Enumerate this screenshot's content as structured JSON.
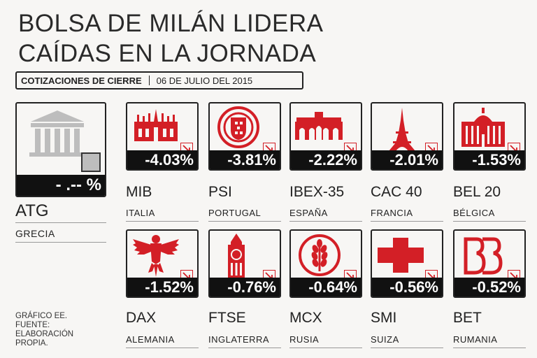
{
  "title": {
    "line1": "BOLSA DE MILÁN LIDERA",
    "line2": "CAÍDAS EN LA JORNADA"
  },
  "subheader": {
    "label": "COTIZACIONES DE CIERRE",
    "date": "06 DE JULIO DEL 2015"
  },
  "atg": {
    "index": "ATG",
    "country": "GRECIA",
    "change": "- .-- %"
  },
  "markets": [
    {
      "index": "MIB",
      "country": "ITALIA",
      "change": "-4.03%",
      "icon": "milan-cathedral-icon"
    },
    {
      "index": "PSI",
      "country": "PORTUGAL",
      "change": "-3.81%",
      "icon": "portugal-shield-icon"
    },
    {
      "index": "IBEX-35",
      "country": "ESPAÑA",
      "change": "-2.22%",
      "icon": "puerta-alcala-icon"
    },
    {
      "index": "CAC 40",
      "country": "FRANCIA",
      "change": "-2.01%",
      "icon": "eiffel-tower-icon"
    },
    {
      "index": "BEL 20",
      "country": "BÉLGICA",
      "change": "-1.53%",
      "icon": "belgian-palace-icon"
    },
    {
      "index": "DAX",
      "country": "ALEMANIA",
      "change": "-1.52%",
      "icon": "german-eagle-icon"
    },
    {
      "index": "FTSE",
      "country": "INGLATERRA",
      "change": "-0.76%",
      "icon": "big-ben-icon"
    },
    {
      "index": "MCX",
      "country": "RUSIA",
      "change": "-0.64%",
      "icon": "wheat-emblem-icon"
    },
    {
      "index": "SMI",
      "country": "SUIZA",
      "change": "-0.56%",
      "icon": "swiss-cross-icon"
    },
    {
      "index": "BET",
      "country": "RUMANIA",
      "change": "-0.52%",
      "icon": "bet-logo-icon"
    }
  ],
  "footer": {
    "line1": "GRÁFICO EE.",
    "line2": "FUENTE:",
    "line3": "ELABORACIÓN",
    "line4": "PROPIA."
  },
  "colors": {
    "accent": "#d31f26",
    "dark": "#111111",
    "gray": "#bdbdbd"
  }
}
